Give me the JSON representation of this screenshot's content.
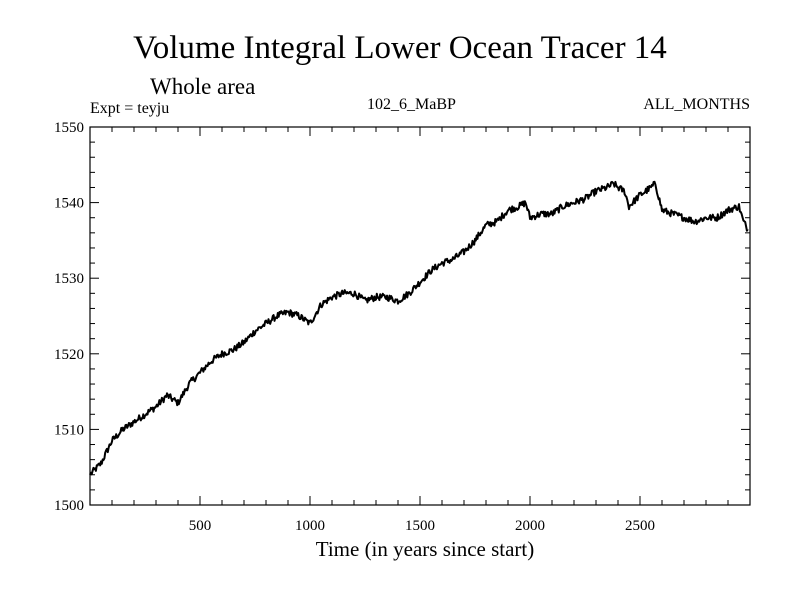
{
  "chart_data": {
    "type": "line",
    "title": "Volume Integral Lower Ocean Tracer 14",
    "subtitle": "Whole area",
    "expt_label": "Expt = teyju",
    "run_label": "102_6_MaBP",
    "months_label": "ALL_MONTHS",
    "xlabel": "Time (in years since start)",
    "ylabel": "",
    "xlim": [
      0,
      3000
    ],
    "ylim": [
      1500,
      1550
    ],
    "x_ticks": [
      500,
      1000,
      1500,
      2000,
      2500
    ],
    "y_ticks": [
      1500,
      1510,
      1520,
      1530,
      1540,
      1550
    ],
    "line_color": "#000000",
    "series": [
      {
        "name": "Lower Ocean Tracer 14",
        "x": [
          0,
          50,
          100,
          150,
          200,
          250,
          300,
          350,
          400,
          450,
          500,
          550,
          600,
          650,
          700,
          750,
          800,
          850,
          900,
          950,
          1000,
          1050,
          1100,
          1150,
          1200,
          1250,
          1300,
          1350,
          1400,
          1450,
          1500,
          1550,
          1600,
          1650,
          1700,
          1750,
          1800,
          1850,
          1900,
          1950,
          1980,
          2000,
          2050,
          2100,
          2150,
          2200,
          2250,
          2300,
          2350,
          2380,
          2400,
          2430,
          2450,
          2500,
          2550,
          2570,
          2600,
          2650,
          2700,
          2750,
          2800,
          2850,
          2900,
          2950,
          2970,
          2990
        ],
        "y": [
          1504.0,
          1505.5,
          1508.5,
          1510.0,
          1511.0,
          1512.0,
          1513.0,
          1514.5,
          1513.5,
          1516.0,
          1517.5,
          1519.0,
          1520.0,
          1520.5,
          1521.5,
          1523.0,
          1524.0,
          1525.0,
          1525.5,
          1525.0,
          1524.0,
          1526.5,
          1527.5,
          1528.0,
          1528.0,
          1527.0,
          1527.5,
          1527.5,
          1527.0,
          1528.0,
          1529.5,
          1531.0,
          1532.0,
          1532.5,
          1533.5,
          1535.0,
          1537.0,
          1537.5,
          1539.0,
          1539.5,
          1540.0,
          1538.0,
          1538.5,
          1538.5,
          1539.5,
          1540.0,
          1540.5,
          1541.5,
          1542.0,
          1542.5,
          1542.0,
          1541.5,
          1539.5,
          1541.0,
          1542.0,
          1542.5,
          1539.0,
          1538.5,
          1538.0,
          1537.5,
          1538.0,
          1538.0,
          1539.0,
          1539.5,
          1537.5,
          1536.5
        ]
      }
    ]
  }
}
